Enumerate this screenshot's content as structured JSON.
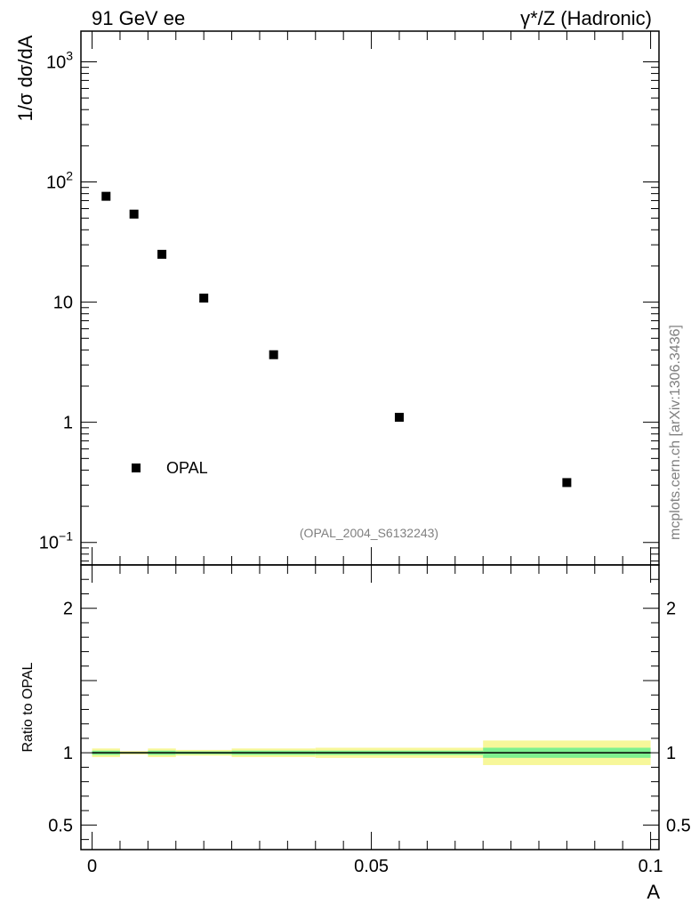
{
  "header": {
    "left": "91 GeV ee",
    "right": "γ*/Z (Hadronic)"
  },
  "side_label": "mcplots.cern.ch [arXiv:1306.3436]",
  "chart_data": [
    {
      "type": "scatter",
      "panel": "main",
      "ylabel": "1/σ dσ/dA",
      "yscale": "log",
      "ylim": [
        0.065,
        1800
      ],
      "xlim": [
        -0.002,
        0.1015
      ],
      "y_ticks": [
        {
          "value": 0.1,
          "base": "10",
          "exp": "−1"
        },
        {
          "value": 1,
          "label": "1"
        },
        {
          "value": 10,
          "label": "10"
        },
        {
          "value": 100,
          "base": "10",
          "exp": "2"
        },
        {
          "value": 1000,
          "base": "10",
          "exp": "3"
        }
      ],
      "series": [
        {
          "name": "OPAL",
          "x": [
            0.0025,
            0.0075,
            0.0125,
            0.02,
            0.0325,
            0.055,
            0.085
          ],
          "y": [
            76,
            54,
            25,
            10.8,
            3.65,
            1.1,
            0.315
          ]
        }
      ],
      "legend_position": "lower-left",
      "annotation": "(OPAL_2004_S6132243)"
    },
    {
      "type": "band",
      "panel": "ratio",
      "ylabel": "Ratio to OPAL",
      "xlabel": "A",
      "ylim": [
        0.33,
        2.3
      ],
      "xlim": [
        -0.002,
        0.1015
      ],
      "x_ticks": [
        {
          "value": 0,
          "label": "0"
        },
        {
          "value": 0.05,
          "label": "0.05"
        },
        {
          "value": 0.1,
          "label": "0.1"
        }
      ],
      "y_ticks": [
        {
          "value": 0.5,
          "label": "0.5"
        },
        {
          "value": 1,
          "label": "1"
        },
        {
          "value": 2,
          "label": "2"
        }
      ],
      "bins": [
        {
          "x0": 0.0,
          "x1": 0.005,
          "stat": 0.015,
          "total": 0.03
        },
        {
          "x0": 0.005,
          "x1": 0.01,
          "stat": 0.005,
          "total": 0.012
        },
        {
          "x0": 0.01,
          "x1": 0.015,
          "stat": 0.015,
          "total": 0.03
        },
        {
          "x0": 0.015,
          "x1": 0.025,
          "stat": 0.01,
          "total": 0.02
        },
        {
          "x0": 0.025,
          "x1": 0.04,
          "stat": 0.015,
          "total": 0.03
        },
        {
          "x0": 0.04,
          "x1": 0.07,
          "stat": 0.015,
          "total": 0.035
        },
        {
          "x0": 0.07,
          "x1": 0.1,
          "stat": 0.035,
          "total": 0.085
        }
      ],
      "colors": {
        "stat": "#7ef08e",
        "total": "#f7f79a",
        "line": "#000000"
      }
    }
  ]
}
